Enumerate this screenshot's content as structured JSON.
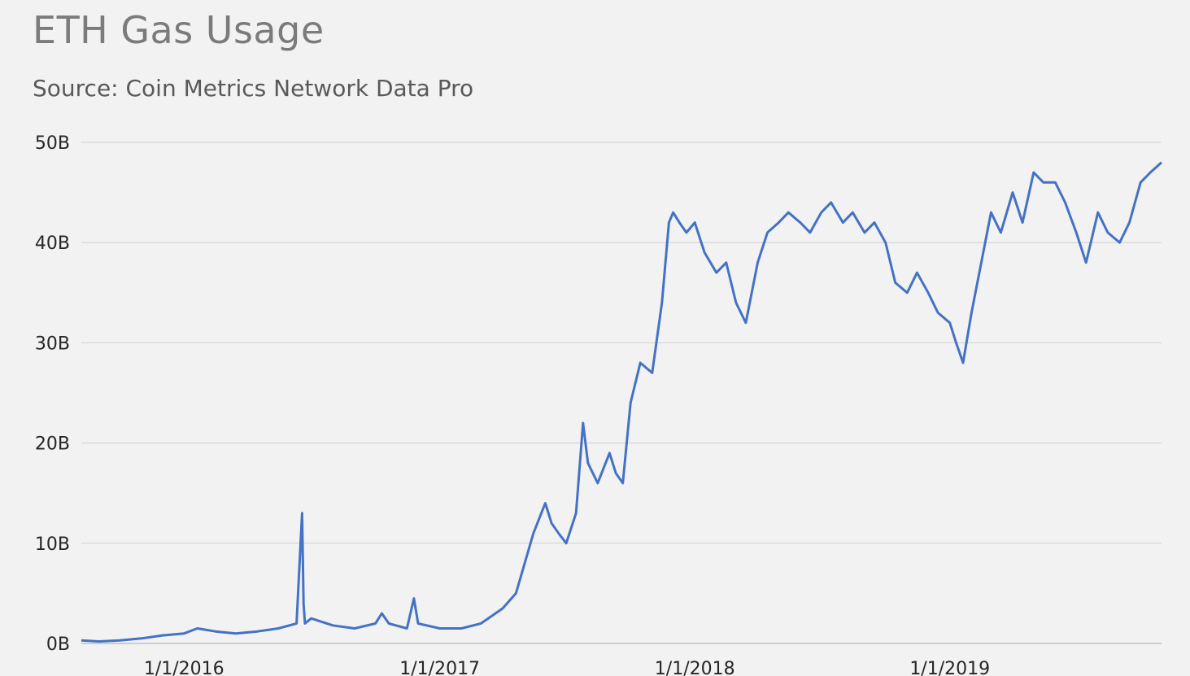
{
  "chart_data": {
    "type": "line",
    "title": "ETH Gas Usage",
    "subtitle": "Source: Coin Metrics Network Data Pro",
    "xlabel": "",
    "ylabel": "",
    "ylim": [
      0,
      50
    ],
    "y_ticks": [
      "0B",
      "10B",
      "20B",
      "30B",
      "40B",
      "50B"
    ],
    "x_ticks": [
      "1/1/2016",
      "1/1/2017",
      "1/1/2018",
      "1/1/2019"
    ],
    "x_range": [
      "2015-08-07",
      "2019-10-31"
    ],
    "grid": true,
    "colors": {
      "line": "#4472c4",
      "grid": "#d0d0d0",
      "background": "#f2f2f2"
    },
    "series": [
      {
        "values_unit": "billion gas",
        "x": [
          "2015-08-07",
          "2015-09-01",
          "2015-10-01",
          "2015-11-01",
          "2015-12-01",
          "2016-01-01",
          "2016-01-20",
          "2016-02-15",
          "2016-03-15",
          "2016-04-15",
          "2016-05-15",
          "2016-06-10",
          "2016-06-18",
          "2016-06-20",
          "2016-06-22",
          "2016-07-01",
          "2016-08-01",
          "2016-09-01",
          "2016-10-01",
          "2016-10-10",
          "2016-10-20",
          "2016-11-15",
          "2016-11-25",
          "2016-12-01",
          "2017-01-01",
          "2017-02-01",
          "2017-03-01",
          "2017-04-01",
          "2017-04-20",
          "2017-05-15",
          "2017-06-01",
          "2017-06-10",
          "2017-06-20",
          "2017-07-01",
          "2017-07-15",
          "2017-07-25",
          "2017-08-01",
          "2017-08-15",
          "2017-09-01",
          "2017-09-10",
          "2017-09-20",
          "2017-10-01",
          "2017-10-15",
          "2017-11-01",
          "2017-11-15",
          "2017-11-25",
          "2017-12-01",
          "2017-12-10",
          "2017-12-20",
          "2018-01-01",
          "2018-01-15",
          "2018-02-01",
          "2018-02-15",
          "2018-03-01",
          "2018-03-15",
          "2018-04-01",
          "2018-04-15",
          "2018-05-01",
          "2018-05-15",
          "2018-06-01",
          "2018-06-15",
          "2018-07-01",
          "2018-07-15",
          "2018-08-01",
          "2018-08-15",
          "2018-09-01",
          "2018-09-15",
          "2018-10-01",
          "2018-10-15",
          "2018-11-01",
          "2018-11-15",
          "2018-12-01",
          "2018-12-15",
          "2019-01-01",
          "2019-01-10",
          "2019-01-20",
          "2019-02-01",
          "2019-02-15",
          "2019-03-01",
          "2019-03-15",
          "2019-04-01",
          "2019-04-15",
          "2019-05-01",
          "2019-05-15",
          "2019-06-01",
          "2019-06-15",
          "2019-07-01",
          "2019-07-15",
          "2019-08-01",
          "2019-08-15",
          "2019-09-01",
          "2019-09-15",
          "2019-10-01",
          "2019-10-15",
          "2019-10-31"
        ],
        "values": [
          0.3,
          0.2,
          0.3,
          0.5,
          0.8,
          1.0,
          1.5,
          1.2,
          1.0,
          1.2,
          1.5,
          2.0,
          13.0,
          4.0,
          2.0,
          2.5,
          1.8,
          1.5,
          2.0,
          3.0,
          2.0,
          1.5,
          4.5,
          2.0,
          1.5,
          1.5,
          2.0,
          3.5,
          5.0,
          11.0,
          14.0,
          12.0,
          11.0,
          10.0,
          13.0,
          22.0,
          18.0,
          16.0,
          19.0,
          17.0,
          16.0,
          24.0,
          28.0,
          27.0,
          34.0,
          42.0,
          43.0,
          42.0,
          41.0,
          42.0,
          39.0,
          37.0,
          38.0,
          34.0,
          32.0,
          38.0,
          41.0,
          42.0,
          43.0,
          42.0,
          41.0,
          43.0,
          44.0,
          42.0,
          43.0,
          41.0,
          42.0,
          40.0,
          36.0,
          35.0,
          37.0,
          35.0,
          33.0,
          32.0,
          30.0,
          28.0,
          33.0,
          38.0,
          43.0,
          41.0,
          45.0,
          42.0,
          47.0,
          46.0,
          46.0,
          44.0,
          41.0,
          38.0,
          43.0,
          41.0,
          40.0,
          42.0,
          46.0,
          47.0,
          48.0
        ]
      }
    ]
  }
}
